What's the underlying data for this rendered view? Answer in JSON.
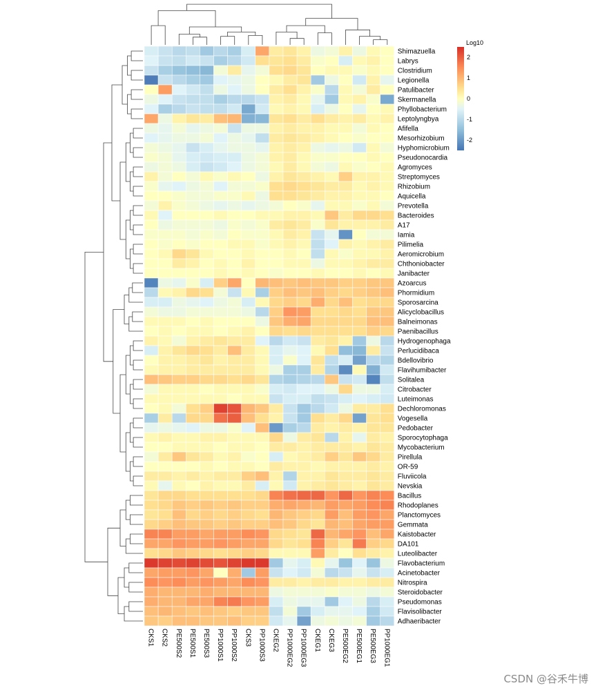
{
  "chart_data": {
    "type": "heatmap",
    "legend_title": "Log10",
    "color_scale": {
      "min": -2.5,
      "max": 2.5,
      "stops": [
        {
          "v": -2.5,
          "color": "#4575b4"
        },
        {
          "v": -1.5,
          "color": "#91bfdb"
        },
        {
          "v": -0.5,
          "color": "#e0f3f8"
        },
        {
          "v": 0.0,
          "color": "#ffffbf"
        },
        {
          "v": 0.5,
          "color": "#fee090"
        },
        {
          "v": 1.5,
          "color": "#fc8d59"
        },
        {
          "v": 2.5,
          "color": "#d73027"
        }
      ],
      "ticks": [
        2,
        1,
        0,
        -1,
        -2
      ]
    },
    "legend_position": "top-right",
    "columns": [
      "CKS1",
      "CKS2",
      "PE500S2",
      "PE500S1",
      "PE500S3",
      "PP1000S1",
      "PP1000S2",
      "CKS3",
      "PP1000S3",
      "CKEG2",
      "PP1000EG2",
      "PP1000EG3",
      "CKEG1",
      "CKEG3",
      "PE500EG2",
      "PE500EG1",
      "PE500EG3",
      "PP1000EG1"
    ],
    "rows": [
      "Shimazuella",
      "Labrys",
      "Clostridium",
      "Legionella",
      "Patulibacter",
      "Skermanella",
      "Phyllobacterium",
      "Leptolyngbya",
      "Afifella",
      "Mesorhizobium",
      "Hyphomicrobium",
      "Pseudonocardia",
      "Agromyces",
      "Streptomyces",
      "Rhizobium",
      "Aquicella",
      "Prevotella",
      "Bacteroides",
      "A17",
      "Iamia",
      "Pilimelia",
      "Aeromicrobium",
      "Chthoniobacter",
      "Janibacter",
      "Azoarcus",
      "Phormidium",
      "Sporosarcina",
      "Alicyclobacillus",
      "Balneimonas",
      "Paenibacillus",
      "Hydrogenophaga",
      "Perlucidibaca",
      "Bdellovibrio",
      "Flavihumibacter",
      "Solitalea",
      "Citrobacter",
      "Luteimonas",
      "Dechloromonas",
      "Vogesella",
      "Pedobacter",
      "Sporocytophaga",
      "Mycobacterium",
      "Pirellula",
      "OR-59",
      "Fluviicola",
      "Nevskia",
      "Bacillus",
      "Rhodoplanes",
      "Planctomyces",
      "Gemmata",
      "Kaistobacter",
      "DA101",
      "Luteolibacter",
      "Flavobacterium",
      "Acinetobacter",
      "Nitrospira",
      "Steroidobacter",
      "Pseudomonas",
      "Flavisolibacter",
      "Adhaeribacter"
    ],
    "values": [
      [
        -0.6,
        -0.8,
        -1.0,
        -0.9,
        -1.3,
        -1.0,
        -1.2,
        -0.6,
        1.2,
        0.3,
        0.4,
        0.2,
        -0.3,
        -0.2,
        0.2,
        -0.3,
        0.1,
        0.0
      ],
      [
        -0.5,
        -0.8,
        -0.9,
        -0.7,
        -0.8,
        -1.2,
        -1.0,
        -0.7,
        0.5,
        0.4,
        0.5,
        0.3,
        -0.1,
        0.0,
        -0.6,
        0.1,
        0.2,
        0.0
      ],
      [
        -0.8,
        -1.2,
        -1.4,
        -1.5,
        -1.6,
        -0.2,
        0.3,
        -0.4,
        -0.2,
        0.5,
        0.6,
        0.4,
        0.0,
        0.1,
        0.1,
        -0.1,
        0.1,
        0.0
      ],
      [
        -2.4,
        -0.8,
        -1.0,
        -1.2,
        -1.3,
        -0.5,
        -0.4,
        -0.3,
        0.0,
        0.1,
        0.3,
        0.4,
        -1.3,
        -0.3,
        0.0,
        -0.7,
        0.2,
        -0.4
      ],
      [
        0.0,
        1.3,
        -0.5,
        -0.7,
        -0.9,
        -0.3,
        -0.5,
        -0.3,
        0.0,
        0.3,
        0.5,
        0.2,
        -0.1,
        -1.0,
        0.1,
        -0.2,
        0.3,
        0.0
      ],
      [
        -0.3,
        -0.5,
        -0.8,
        -0.9,
        -0.9,
        -1.2,
        -1.0,
        -1.0,
        -0.8,
        0.2,
        0.3,
        0.1,
        -0.4,
        -1.3,
        0.1,
        0.2,
        -0.1,
        -1.8
      ],
      [
        -0.5,
        -1.2,
        -1.0,
        -0.8,
        -0.9,
        -0.9,
        -0.7,
        -1.8,
        -0.7,
        0.1,
        0.2,
        0.1,
        -0.6,
        -0.3,
        0.0,
        -0.4,
        0.0,
        0.1
      ],
      [
        1.2,
        -0.3,
        0.2,
        0.4,
        0.3,
        0.9,
        1.0,
        -1.7,
        -1.6,
        0.4,
        0.5,
        0.3,
        0.5,
        0.3,
        0.2,
        0.3,
        0.1,
        0.2
      ],
      [
        -0.3,
        -0.4,
        -0.2,
        -0.4,
        -0.3,
        -0.2,
        -0.8,
        -0.3,
        -0.3,
        0.2,
        0.3,
        0.2,
        0.2,
        0.1,
        0.1,
        -0.2,
        0.1,
        0.0
      ],
      [
        -0.5,
        -0.4,
        -0.3,
        -0.3,
        -0.2,
        -0.5,
        -0.3,
        -0.4,
        -0.9,
        0.3,
        0.4,
        0.3,
        0.2,
        0.1,
        0.0,
        -0.1,
        0.0,
        0.0
      ],
      [
        -0.2,
        -0.3,
        -0.4,
        -0.8,
        -0.6,
        -0.4,
        -0.3,
        -0.3,
        -0.4,
        0.2,
        0.3,
        0.2,
        -0.3,
        -0.4,
        -0.3,
        -0.7,
        0.1,
        -0.2
      ],
      [
        -0.1,
        -0.2,
        -0.4,
        -0.6,
        -0.7,
        -0.6,
        -0.6,
        -0.3,
        -0.2,
        0.2,
        0.3,
        0.1,
        -0.1,
        -0.1,
        0.0,
        0.0,
        0.1,
        0.0
      ],
      [
        -0.3,
        -0.2,
        -0.3,
        -0.6,
        -0.8,
        -0.7,
        -0.5,
        -0.3,
        -0.2,
        0.1,
        0.3,
        0.1,
        -0.2,
        -0.3,
        0.1,
        -0.1,
        0.0,
        0.1
      ],
      [
        0.2,
        -0.2,
        0.0,
        -0.2,
        0.1,
        -0.1,
        0.1,
        0.0,
        -0.3,
        0.2,
        0.4,
        0.3,
        0.2,
        0.1,
        0.7,
        0.2,
        0.2,
        0.1
      ],
      [
        -0.1,
        -0.4,
        -0.5,
        -0.3,
        -0.2,
        -0.5,
        -0.2,
        -0.2,
        -0.1,
        0.5,
        0.6,
        0.5,
        0.4,
        0.3,
        0.3,
        0.1,
        0.2,
        0.1
      ],
      [
        0.0,
        0.0,
        -0.1,
        -0.2,
        -0.2,
        -0.1,
        -0.1,
        0.1,
        -0.3,
        0.5,
        0.5,
        0.4,
        0.3,
        0.2,
        0.2,
        0.1,
        0.1,
        0.0
      ],
      [
        -0.2,
        0.2,
        -0.1,
        -0.2,
        -0.3,
        -0.4,
        -0.3,
        -0.4,
        -0.3,
        -0.2,
        0.0,
        -0.1,
        -0.4,
        0.1,
        0.1,
        -0.1,
        0.1,
        -0.2
      ],
      [
        0.1,
        -0.5,
        0.0,
        0.0,
        0.0,
        0.1,
        0.0,
        0.0,
        0.1,
        0.1,
        0.2,
        0.2,
        0.1,
        0.8,
        0.3,
        0.6,
        0.6,
        0.5
      ],
      [
        0.0,
        -0.3,
        -0.2,
        -0.2,
        -0.2,
        -0.3,
        -0.1,
        -0.2,
        -0.1,
        0.3,
        0.4,
        0.3,
        -0.1,
        0.4,
        0.2,
        0.2,
        0.2,
        0.3
      ],
      [
        -0.1,
        -0.1,
        -0.1,
        -0.2,
        -0.1,
        -0.2,
        0.0,
        -0.1,
        -0.1,
        0.1,
        0.3,
        0.2,
        -0.8,
        -0.4,
        -2.1,
        0.0,
        -0.2,
        -0.2
      ],
      [
        0.0,
        -0.1,
        0.0,
        -0.1,
        0.0,
        0.0,
        0.1,
        0.1,
        -0.1,
        0.1,
        0.2,
        0.1,
        -0.9,
        -0.5,
        0.2,
        0.1,
        0.2,
        0.3
      ],
      [
        0.0,
        0.1,
        0.6,
        0.4,
        0.1,
        0.0,
        0.0,
        0.1,
        0.0,
        0.0,
        0.1,
        0.0,
        -0.9,
        0.1,
        -0.1,
        0.1,
        0.1,
        0.2
      ],
      [
        0.0,
        0.0,
        0.3,
        0.2,
        0.0,
        0.1,
        0.0,
        0.2,
        0.0,
        0.0,
        0.1,
        0.1,
        -0.3,
        0.1,
        0.1,
        0.2,
        0.3,
        0.3
      ],
      [
        0.0,
        0.0,
        0.0,
        0.0,
        0.0,
        0.1,
        0.0,
        0.1,
        0.0,
        -0.1,
        0.0,
        0.0,
        0.1,
        0.0,
        0.0,
        0.1,
        0.0,
        0.1
      ],
      [
        -2.3,
        -0.3,
        -0.4,
        -0.1,
        -0.6,
        0.7,
        1.2,
        0.0,
        1.0,
        0.9,
        0.8,
        0.9,
        0.8,
        0.8,
        0.7,
        0.7,
        0.8,
        0.8
      ],
      [
        -1.0,
        0.1,
        0.2,
        0.6,
        0.5,
        -0.2,
        -0.8,
        0.1,
        -1.2,
        0.7,
        0.9,
        0.8,
        0.9,
        0.7,
        0.6,
        0.7,
        0.8,
        0.9
      ],
      [
        -0.6,
        -0.6,
        -0.3,
        -0.4,
        -0.5,
        -0.3,
        -0.2,
        -0.6,
        0.1,
        0.6,
        0.7,
        0.6,
        1.1,
        0.6,
        0.9,
        0.5,
        0.6,
        0.6
      ],
      [
        -0.2,
        -0.3,
        -0.3,
        -0.2,
        -0.2,
        -0.2,
        -0.2,
        -0.3,
        -1.0,
        0.7,
        1.4,
        1.3,
        0.5,
        0.5,
        0.6,
        0.5,
        0.8,
        0.8
      ],
      [
        0.1,
        0.1,
        0.1,
        0.0,
        0.1,
        0.0,
        0.0,
        0.0,
        -0.3,
        0.8,
        1.1,
        1.2,
        0.6,
        0.6,
        0.6,
        0.6,
        0.9,
        0.9
      ],
      [
        0.0,
        0.1,
        0.0,
        0.1,
        0.1,
        0.0,
        0.1,
        0.2,
        0.0,
        0.6,
        0.5,
        0.6,
        0.5,
        0.5,
        0.5,
        0.5,
        0.7,
        0.6
      ],
      [
        0.2,
        0.1,
        -0.2,
        0.2,
        0.3,
        0.4,
        0.3,
        0.3,
        -0.5,
        -1.0,
        -0.7,
        -0.8,
        0.3,
        0.4,
        0.2,
        -1.3,
        -0.3,
        -1.0
      ],
      [
        -0.6,
        0.2,
        0.4,
        0.6,
        0.5,
        0.3,
        0.9,
        0.3,
        0.1,
        -0.6,
        -0.4,
        -0.5,
        0.1,
        0.5,
        -1.5,
        -1.6,
        0.3,
        -0.8
      ],
      [
        0.0,
        0.2,
        0.2,
        0.3,
        0.4,
        0.2,
        0.3,
        0.3,
        0.1,
        -0.6,
        -0.1,
        -0.5,
        0.4,
        -0.9,
        -0.6,
        -1.9,
        -1.0,
        -1.1
      ],
      [
        0.1,
        0.2,
        0.2,
        0.3,
        0.3,
        0.3,
        0.3,
        0.3,
        0.1,
        -0.3,
        -1.2,
        -1.2,
        0.3,
        -1.1,
        -2.2,
        0.1,
        -1.7,
        -0.7
      ],
      [
        0.9,
        0.8,
        0.7,
        0.7,
        0.6,
        0.6,
        0.5,
        0.6,
        0.4,
        -1.1,
        -1.2,
        -1.1,
        -1.0,
        0.8,
        -0.8,
        -0.7,
        -2.3,
        -0.9
      ],
      [
        -0.2,
        0.1,
        0.1,
        0.1,
        0.0,
        0.1,
        0.1,
        0.1,
        -0.1,
        -0.6,
        -0.7,
        -0.5,
        -0.5,
        -0.3,
        0.6,
        -0.3,
        -0.3,
        -0.6
      ],
      [
        0.1,
        0.1,
        0.1,
        0.1,
        0.1,
        0.1,
        0.0,
        0.1,
        0.1,
        -0.8,
        -0.6,
        -0.6,
        -0.9,
        -0.8,
        -0.6,
        -0.5,
        -0.6,
        -0.7
      ],
      [
        0.0,
        0.1,
        -0.2,
        0.5,
        0.7,
        2.3,
        2.1,
        1.0,
        0.8,
        0.3,
        -0.8,
        -1.3,
        -1.0,
        -0.7,
        -0.3,
        0.3,
        0.3,
        0.5
      ],
      [
        -1.2,
        0.3,
        -1.0,
        0.6,
        0.6,
        1.8,
        2.0,
        0.9,
        0.5,
        0.2,
        -0.8,
        -1.3,
        0.5,
        0.3,
        0.6,
        -1.9,
        0.4,
        0.5
      ],
      [
        -0.4,
        -0.3,
        -0.4,
        -0.5,
        -0.3,
        -0.3,
        -0.1,
        -0.5,
        0.9,
        -2.0,
        -1.2,
        -1.0,
        0.3,
        0.2,
        0.3,
        0.2,
        0.4,
        0.4
      ],
      [
        0.1,
        0.2,
        0.1,
        0.1,
        0.2,
        0.2,
        0.1,
        0.1,
        0.1,
        0.6,
        -0.3,
        0.3,
        0.4,
        -1.0,
        0.2,
        -0.4,
        0.3,
        0.2
      ],
      [
        0.0,
        0.0,
        0.1,
        0.1,
        0.1,
        0.0,
        0.1,
        0.1,
        0.0,
        0.3,
        0.3,
        0.2,
        0.3,
        0.3,
        0.3,
        0.2,
        0.4,
        0.3
      ],
      [
        -0.2,
        0.3,
        0.8,
        0.4,
        0.3,
        0.1,
        0.2,
        -0.1,
        0.0,
        -0.6,
        0.1,
        0.2,
        0.3,
        0.7,
        0.4,
        0.8,
        0.6,
        0.3
      ],
      [
        0.0,
        0.0,
        0.0,
        0.0,
        0.1,
        0.0,
        0.1,
        0.1,
        0.0,
        0.3,
        0.2,
        0.2,
        0.1,
        0.2,
        0.2,
        0.2,
        0.3,
        0.2
      ],
      [
        0.3,
        0.3,
        0.2,
        0.3,
        0.2,
        0.3,
        0.3,
        0.7,
        0.9,
        0.2,
        -1.1,
        0.2,
        0.2,
        0.4,
        0.3,
        0.3,
        0.4,
        0.3
      ],
      [
        0.1,
        -0.4,
        0.1,
        0.0,
        0.2,
        0.1,
        0.1,
        0.3,
        -0.6,
        0.1,
        -0.7,
        0.2,
        0.3,
        0.4,
        0.3,
        0.2,
        0.4,
        0.3
      ],
      [
        0.4,
        0.6,
        0.6,
        0.5,
        0.5,
        0.5,
        0.5,
        0.5,
        0.6,
        1.6,
        1.8,
        1.9,
        1.9,
        1.4,
        1.9,
        1.4,
        1.6,
        1.5
      ],
      [
        0.5,
        0.6,
        0.8,
        0.7,
        0.8,
        0.7,
        0.8,
        0.7,
        0.7,
        1.1,
        1.2,
        1.1,
        1.0,
        1.3,
        1.2,
        1.3,
        1.5,
        1.6
      ],
      [
        0.4,
        0.5,
        0.9,
        0.6,
        0.7,
        0.6,
        0.7,
        0.6,
        0.5,
        1.0,
        0.8,
        0.7,
        0.6,
        1.3,
        0.9,
        1.3,
        1.4,
        1.2
      ],
      [
        0.6,
        0.7,
        0.9,
        0.8,
        0.8,
        0.7,
        0.8,
        0.7,
        0.7,
        0.9,
        0.8,
        0.6,
        0.4,
        1.0,
        0.9,
        1.2,
        1.3,
        1.3
      ],
      [
        1.6,
        1.6,
        1.3,
        1.3,
        1.2,
        1.3,
        1.3,
        1.5,
        1.4,
        0.6,
        0.5,
        0.4,
        1.9,
        1.0,
        1.2,
        1.4,
        0.9,
        1.2
      ],
      [
        1.2,
        1.2,
        1.4,
        1.3,
        1.3,
        1.4,
        1.3,
        1.2,
        1.2,
        0.6,
        0.4,
        0.5,
        1.6,
        0.7,
        0.4,
        1.7,
        0.7,
        0.6
      ],
      [
        0.5,
        0.6,
        0.8,
        0.7,
        0.6,
        0.5,
        0.6,
        0.7,
        0.6,
        0.1,
        0.1,
        0.1,
        1.3,
        0.3,
        0.0,
        0.5,
        0.3,
        0.2
      ],
      [
        2.4,
        2.3,
        2.2,
        2.3,
        2.2,
        2.1,
        2.3,
        2.4,
        2.4,
        -1.3,
        -0.4,
        -0.6,
        0.1,
        -0.4,
        -1.4,
        -0.5,
        -1.4,
        -0.3
      ],
      [
        1.2,
        1.3,
        1.3,
        1.4,
        1.2,
        0.0,
        1.1,
        -1.3,
        1.3,
        -0.8,
        -0.5,
        -0.7,
        -0.2,
        -1.0,
        -0.8,
        -0.4,
        -0.8,
        -0.6
      ],
      [
        1.5,
        1.4,
        1.5,
        1.3,
        1.4,
        1.3,
        1.2,
        1.5,
        1.4,
        0.3,
        0.3,
        0.2,
        0.3,
        0.3,
        0.2,
        0.2,
        0.3,
        0.3
      ],
      [
        1.1,
        1.0,
        1.0,
        1.0,
        1.1,
        1.0,
        1.0,
        1.0,
        1.0,
        -0.3,
        -0.2,
        -0.2,
        -0.2,
        -0.1,
        -0.2,
        -0.2,
        -0.3,
        -0.2
      ],
      [
        1.1,
        1.0,
        1.0,
        1.2,
        1.2,
        1.6,
        1.7,
        1.4,
        1.3,
        -0.6,
        -0.3,
        -0.4,
        -0.4,
        -1.3,
        -0.5,
        -0.3,
        -1.0,
        -0.6
      ],
      [
        0.9,
        1.0,
        0.9,
        0.8,
        0.9,
        0.8,
        0.7,
        0.8,
        0.8,
        -0.9,
        -0.2,
        -1.3,
        -0.6,
        -0.4,
        -0.4,
        -0.5,
        -1.2,
        -0.7
      ],
      [
        0.8,
        0.7,
        0.9,
        0.9,
        0.8,
        0.8,
        0.9,
        0.7,
        0.7,
        -0.7,
        -0.4,
        -1.9,
        -0.3,
        -0.2,
        -0.3,
        -0.2,
        -1.3,
        -1.0
      ]
    ]
  },
  "watermark": "CSDN @谷禾牛博"
}
